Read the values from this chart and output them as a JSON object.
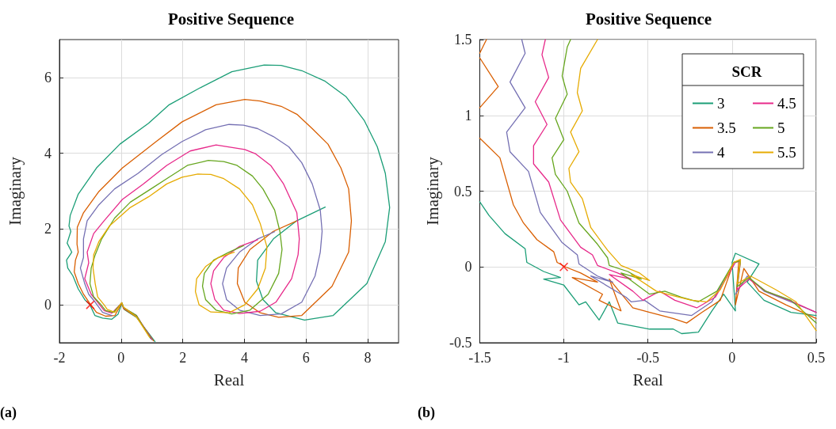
{
  "chart_data": [
    {
      "type": "line",
      "title": "Positive Sequence",
      "xlabel": "Real",
      "ylabel": "Imaginary",
      "xlim": [
        -2,
        9
      ],
      "ylim": [
        -1,
        7
      ],
      "xticks": [
        -2,
        0,
        2,
        4,
        6,
        8
      ],
      "yticks": [
        0,
        2,
        4,
        6
      ],
      "grid": true,
      "legend": false,
      "marker": "none",
      "line_style": "solid",
      "annotations": [
        "(a)"
      ],
      "series": [
        {
          "color": "#1b9e77",
          "x": [
            6.62,
            5.7,
            4.94,
            4.43,
            4.39,
            4.6,
            5.02,
            5.95,
            6.88,
            7.97,
            8.57,
            8.71,
            8.57,
            8.31,
            7.89,
            7.3,
            6.62,
            5.86,
            5.19,
            4.64,
            3.59,
            2.57,
            1.56,
            0.89,
            -0.04,
            -0.8,
            -1.39,
            -1.65,
            -1.69,
            -1.63,
            -1.75,
            -1.6,
            -1.77,
            -1.73,
            -1.56,
            -1.39,
            -1.18,
            -1.01,
            -0.85,
            -0.6,
            -0.3,
            -0.1,
            0.03,
            0.1,
            0.5,
            1.1
          ],
          "values": [
            2.58,
            2.22,
            1.74,
            1.18,
            0.63,
            0.14,
            -0.21,
            -0.4,
            -0.28,
            0.56,
            1.67,
            2.57,
            3.47,
            4.17,
            4.86,
            5.49,
            5.9,
            6.18,
            6.32,
            6.33,
            6.15,
            5.73,
            5.28,
            4.79,
            4.24,
            3.61,
            2.92,
            2.36,
            2.08,
            1.94,
            1.63,
            1.39,
            1.18,
            0.97,
            0.76,
            0.42,
            0.14,
            0.0,
            -0.28,
            -0.35,
            -0.38,
            -0.25,
            0.05,
            -0.12,
            -0.33,
            -0.97
          ]
        },
        {
          "color": "#d95f02",
          "x": [
            5.68,
            4.94,
            4.18,
            3.8,
            3.77,
            4.01,
            4.51,
            5.11,
            5.86,
            6.84,
            7.38,
            7.47,
            7.38,
            7.13,
            6.71,
            6.2,
            5.7,
            5.19,
            4.51,
            4.01,
            3.08,
            1.98,
            1.14,
            0.04,
            -0.72,
            -1.22,
            -1.42,
            -1.43,
            -1.39,
            -1.48,
            -1.52,
            -1.39,
            -1.22,
            -1.01,
            -0.8,
            -0.5,
            -0.2,
            0.02,
            0.08,
            0.5,
            1.05
          ],
          "values": [
            2.21,
            1.94,
            1.46,
            0.97,
            0.56,
            0.07,
            -0.21,
            -0.33,
            -0.28,
            0.49,
            1.39,
            2.22,
            3.06,
            3.61,
            4.24,
            4.65,
            5.03,
            5.24,
            5.38,
            5.42,
            5.28,
            4.83,
            4.31,
            3.61,
            2.99,
            2.43,
            2.05,
            1.6,
            1.39,
            1.18,
            0.87,
            0.56,
            0.28,
            0.03,
            -0.2,
            -0.3,
            -0.28,
            0.04,
            -0.1,
            -0.32,
            -0.95
          ]
        },
        {
          "color": "#7570b3",
          "x": [
            4.98,
            4.43,
            3.84,
            3.42,
            3.29,
            3.42,
            3.84,
            4.51,
            5.19,
            5.86,
            6.29,
            6.46,
            6.52,
            6.46,
            6.2,
            5.86,
            5.44,
            4.94,
            4.43,
            3.97,
            3.5,
            2.74,
            1.98,
            1.31,
            0.55,
            -0.21,
            -0.72,
            -1.1,
            -1.22,
            -1.22,
            -1.32,
            -1.18,
            -1.05,
            -0.84,
            -0.6,
            -0.3,
            null,
            0.08,
            0.5,
            1.0
          ],
          "values": [
            1.93,
            1.74,
            1.39,
            0.97,
            0.56,
            0.14,
            -0.14,
            -0.28,
            -0.24,
            0.07,
            0.76,
            1.39,
            1.94,
            2.5,
            3.19,
            3.75,
            4.17,
            4.44,
            4.65,
            4.74,
            4.76,
            4.62,
            4.31,
            3.96,
            3.47,
            3.06,
            2.64,
            2.22,
            1.74,
            1.25,
            0.97,
            0.56,
            0.28,
            0.07,
            -0.2,
            -0.28,
            null,
            -0.08,
            -0.3,
            -0.92
          ]
        },
        {
          "color": "#e7298a",
          "x": [
            4.43,
            3.84,
            3.33,
            3.0,
            2.91,
            3.04,
            3.33,
            3.84,
            4.51,
            5.02,
            5.53,
            5.74,
            5.78,
            5.7,
            5.27,
            4.85,
            4.35,
            4.01,
            3.08,
            2.24,
            1.48,
            0.72,
            0.04,
            -0.55,
            -0.89,
            -1.1,
            -1.05,
            -1.18,
            -0.97,
            -0.76,
            -0.55,
            -0.3,
            0.02,
            0.08,
            0.5,
            0.98
          ],
          "values": [
            1.72,
            1.54,
            1.25,
            0.9,
            0.56,
            0.14,
            -0.14,
            -0.23,
            -0.17,
            0.07,
            0.69,
            1.32,
            1.74,
            2.43,
            3.19,
            3.68,
            3.99,
            4.1,
            4.22,
            4.06,
            3.68,
            3.19,
            2.78,
            2.22,
            1.88,
            1.39,
            1.11,
            0.69,
            0.28,
            0.07,
            -0.15,
            -0.22,
            0.05,
            -0.08,
            -0.28,
            -0.9
          ]
        },
        {
          "color": "#66a61e",
          "x": [
            3.97,
            3.5,
            3.0,
            2.7,
            2.64,
            2.74,
            3.08,
            3.59,
            4.18,
            4.77,
            5.11,
            5.22,
            5.15,
            4.98,
            4.6,
            4.26,
            3.76,
            3.33,
            2.83,
            2.15,
            1.48,
            0.97,
            0.3,
            -0.21,
            -0.63,
            -0.84,
            -0.97,
            -1.01,
            -0.89,
            -0.68,
            -0.5,
            -0.25,
            0.02,
            0.08,
            0.5,
            0.95
          ],
          "values": [
            1.56,
            1.39,
            1.18,
            0.83,
            0.49,
            0.14,
            -0.14,
            -0.24,
            -0.14,
            0.28,
            0.83,
            1.46,
            1.94,
            2.5,
            3.06,
            3.4,
            3.68,
            3.78,
            3.81,
            3.68,
            3.33,
            3.06,
            2.71,
            2.29,
            1.74,
            1.32,
            0.97,
            0.56,
            0.21,
            0.03,
            -0.15,
            -0.2,
            0.05,
            -0.07,
            -0.28,
            -0.88
          ]
        },
        {
          "color": "#e6ab02",
          "x": [
            3.67,
            3.16,
            2.74,
            2.45,
            2.41,
            2.53,
            2.91,
            3.5,
            4.01,
            4.43,
            4.68,
            4.73,
            4.51,
            4.26,
            3.84,
            3.33,
            2.91,
            2.49,
            1.98,
            1.48,
            0.89,
            0.3,
            -0.38,
            -0.72,
            -0.89,
            -0.91,
            -0.84,
            -0.76,
            -0.55,
            -0.45,
            -0.2,
            0.02,
            0.08,
            0.5,
            0.92
          ],
          "values": [
            1.39,
            1.25,
            1.01,
            0.69,
            0.35,
            0.0,
            -0.19,
            -0.21,
            0.0,
            0.42,
            0.97,
            1.53,
            2.15,
            2.64,
            3.06,
            3.33,
            3.44,
            3.45,
            3.37,
            3.19,
            2.85,
            2.57,
            2.08,
            1.67,
            1.32,
            0.97,
            0.56,
            0.21,
            0.0,
            -0.12,
            -0.2,
            0.06,
            -0.06,
            -0.32,
            -0.85
          ]
        },
        {
          "type": "scatter",
          "marker": "cross",
          "color": "#ff0000",
          "x": [
            -1
          ],
          "values": [
            0
          ]
        }
      ]
    },
    {
      "type": "line",
      "title": "Positive Sequence",
      "xlabel": "Real",
      "ylabel": "Imaginary",
      "xlim": [
        -1.5,
        0.5
      ],
      "ylim": [
        -0.5,
        1.5
      ],
      "xticks": [
        -1.5,
        -1,
        -0.5,
        0,
        0.5
      ],
      "yticks": [
        -0.5,
        0,
        0.5,
        1,
        1.5
      ],
      "grid": true,
      "legend": "top right",
      "legend_title": "SCR",
      "marker": "none",
      "line_style": "solid",
      "annotations": [
        "(b)"
      ],
      "series": [
        {
          "name": "3",
          "color": "#1b9e77",
          "x": [
            -1.5,
            -1.445,
            -1.35,
            -1.23,
            -1.22,
            -1.12,
            -1.02,
            -1.12,
            -1.0,
            -0.91,
            -0.87,
            -0.79,
            -0.73,
            -0.68,
            -0.49,
            -0.35,
            -0.3,
            -0.2,
            -0.12,
            -0.05,
            0.02,
            0.0,
            0.02,
            0.16,
            0.09,
            0.19,
            0.35,
            0.5
          ],
          "values": [
            0.43,
            0.34,
            0.22,
            0.12,
            0.03,
            -0.03,
            -0.07,
            -0.08,
            -0.12,
            -0.25,
            -0.23,
            -0.35,
            -0.23,
            -0.37,
            -0.41,
            -0.41,
            -0.44,
            -0.43,
            -0.29,
            -0.18,
            -0.29,
            0.03,
            0.09,
            0.02,
            -0.1,
            -0.22,
            -0.3,
            -0.32
          ]
        },
        {
          "name": "3.5",
          "color": "#d95f02",
          "x": [
            -1.46,
            -1.5,
            null,
            -1.5,
            -1.39,
            -1.5,
            null,
            -1.5,
            -1.38,
            -1.3,
            -1.24,
            -1.16,
            -1.06,
            -1.04,
            -0.99,
            -0.9,
            -0.8,
            -0.95,
            -0.77,
            -0.79,
            -0.66,
            -0.73,
            -0.59,
            -0.49,
            -0.35,
            -0.27,
            -0.18,
            -0.07,
            0.01,
            0.04,
            0.02,
            0.07,
            0.16,
            0.32,
            0.5
          ],
          "values": [
            1.5,
            1.41,
            null,
            1.38,
            1.19,
            1.05,
            null,
            0.85,
            0.72,
            0.41,
            0.29,
            0.18,
            0.1,
            0.03,
            0.0,
            -0.04,
            -0.1,
            -0.07,
            -0.18,
            -0.22,
            -0.29,
            -0.08,
            -0.27,
            -0.3,
            -0.34,
            -0.37,
            -0.3,
            -0.22,
            0.03,
            0.04,
            -0.25,
            -0.01,
            -0.16,
            -0.25,
            -0.34
          ]
        },
        {
          "name": "4",
          "color": "#7570b3",
          "x": [
            -1.25,
            -1.23,
            -1.32,
            -1.23,
            -1.34,
            -1.32,
            -1.21,
            -1.14,
            -1.01,
            -0.92,
            -0.91,
            -0.8,
            -0.71,
            -0.84,
            -0.63,
            -0.6,
            -0.52,
            -0.43,
            -0.24,
            -0.12,
            0.01,
            null,
            0.02,
            0.09,
            0.19,
            0.35,
            0.5
          ],
          "values": [
            1.5,
            1.41,
            1.22,
            1.05,
            0.89,
            0.76,
            0.63,
            0.36,
            0.16,
            0.08,
            0.02,
            -0.06,
            -0.1,
            -0.06,
            -0.2,
            -0.23,
            -0.22,
            -0.29,
            -0.32,
            -0.23,
            0.03,
            null,
            -0.18,
            -0.06,
            -0.16,
            -0.23,
            -0.3
          ]
        },
        {
          "name": "4.5",
          "color": "#e7298a",
          "x": [
            -1.11,
            -1.13,
            -1.09,
            -1.17,
            -1.1,
            -1.18,
            -1.18,
            -1.09,
            -1.02,
            -0.9,
            -0.83,
            -0.8,
            -0.68,
            -0.6,
            -0.73,
            -0.59,
            -0.53,
            -0.43,
            -0.34,
            -0.21,
            -0.1,
            0.02,
            0.05,
            0.03,
            0.1,
            0.2,
            0.34,
            0.5
          ],
          "values": [
            1.5,
            1.4,
            1.25,
            1.09,
            0.94,
            0.8,
            0.68,
            0.56,
            0.31,
            0.13,
            0.08,
            0.01,
            -0.04,
            -0.08,
            -0.05,
            -0.16,
            -0.22,
            -0.16,
            -0.22,
            -0.27,
            -0.2,
            0.03,
            0.04,
            -0.15,
            -0.08,
            -0.16,
            -0.22,
            -0.3
          ]
        },
        {
          "name": "5",
          "color": "#66a61e",
          "x": [
            -0.96,
            -0.98,
            -1.01,
            -0.98,
            -1.05,
            -1.0,
            -1.07,
            -1.05,
            -0.98,
            -0.91,
            -0.8,
            -0.74,
            -0.73,
            -0.62,
            -0.54,
            -0.66,
            -0.49,
            -0.4,
            -0.3,
            -0.2,
            -0.09,
            0.01,
            0.05,
            0.03,
            0.1,
            0.2,
            0.35,
            0.5
          ],
          "values": [
            1.5,
            1.45,
            1.26,
            1.14,
            0.98,
            0.84,
            0.72,
            0.61,
            0.5,
            0.29,
            0.15,
            0.06,
            0.01,
            -0.03,
            -0.08,
            -0.04,
            -0.18,
            -0.16,
            -0.2,
            -0.23,
            -0.16,
            0.03,
            0.04,
            -0.13,
            -0.07,
            -0.16,
            -0.22,
            -0.37
          ]
        },
        {
          "name": "5.5",
          "color": "#e6ab02",
          "x": [
            -0.8,
            -0.9,
            -0.92,
            -0.89,
            -0.96,
            -0.91,
            -0.97,
            -0.96,
            -0.89,
            -0.84,
            -0.74,
            -0.66,
            -0.55,
            -0.49,
            -0.6,
            -0.45,
            -0.35,
            -0.24,
            -0.15,
            -0.07,
            0.01,
            0.05,
            0.03,
            0.11,
            0.26,
            0.38,
            0.5
          ],
          "values": [
            1.5,
            1.31,
            1.15,
            1.03,
            0.89,
            0.76,
            0.65,
            0.56,
            0.45,
            0.26,
            0.11,
            0.01,
            -0.04,
            -0.09,
            -0.05,
            -0.16,
            -0.19,
            -0.22,
            -0.23,
            -0.15,
            0.03,
            0.05,
            -0.11,
            -0.06,
            -0.15,
            -0.23,
            -0.42
          ]
        },
        {
          "type": "scatter",
          "marker": "cross",
          "color": "#ff0000",
          "x": [
            -1
          ],
          "values": [
            0
          ]
        }
      ]
    }
  ]
}
